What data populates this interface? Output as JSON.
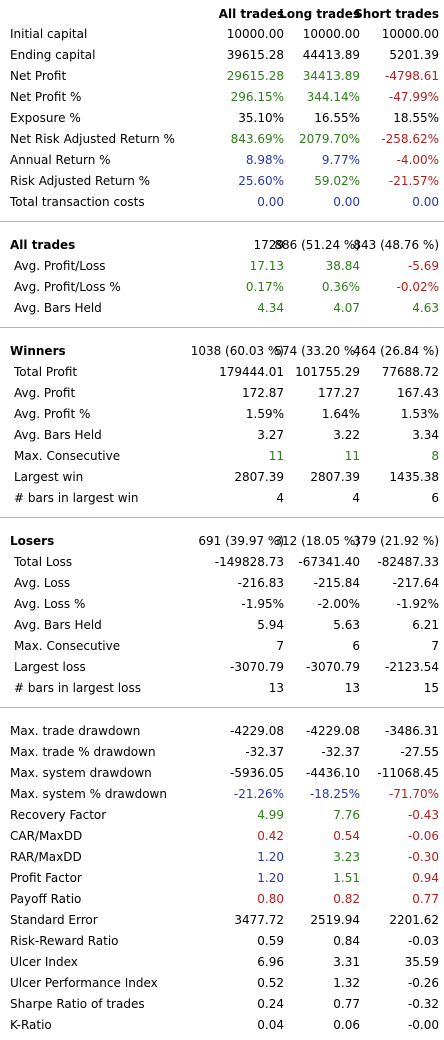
{
  "header": {
    "col_all": "All trades",
    "col_long": "Long trades",
    "col_short": "Short trades"
  },
  "sections": [
    {
      "id": "summary",
      "rows": [
        {
          "label": "Initial capital",
          "all": "10000.00",
          "long": "10000.00",
          "short": "10000.00"
        },
        {
          "label": "Ending capital",
          "all": "39615.28",
          "long": "44413.89",
          "short": "5201.39"
        },
        {
          "label": "Net Profit",
          "all": "29615.28",
          "long": "34413.89",
          "short": "-4798.61"
        },
        {
          "label": "Net Profit %",
          "all": "296.15%",
          "long": "344.14%",
          "short": "-47.99%"
        },
        {
          "label": "Exposure %",
          "all": "35.10%",
          "long": "16.55%",
          "short": "18.55%"
        },
        {
          "label": "Net Risk Adjusted Return %",
          "all": "843.69%",
          "long": "2079.70%",
          "short": "-258.62%"
        },
        {
          "label": "Annual Return %",
          "all": "8.98%",
          "long": "9.77%",
          "short": "-4.00%"
        },
        {
          "label": "Risk Adjusted Return %",
          "all": "25.60%",
          "long": "59.02%",
          "short": "-21.57%"
        },
        {
          "label": "Total transaction costs",
          "all": "0.00",
          "long": "0.00",
          "short": "0.00"
        }
      ]
    },
    {
      "id": "all-trades",
      "title": {
        "label": "All trades",
        "all": "1729",
        "long": "886 (51.24 %)",
        "short": "843 (48.76 %)"
      },
      "rows": [
        {
          "label": "Avg. Profit/Loss",
          "all": "17.13",
          "long": "38.84",
          "short": "-5.69"
        },
        {
          "label": "Avg. Profit/Loss %",
          "all": "0.17%",
          "long": "0.36%",
          "short": "-0.02%"
        },
        {
          "label": "Avg. Bars Held",
          "all": "4.34",
          "long": "4.07",
          "short": "4.63"
        }
      ]
    },
    {
      "id": "winners",
      "title": {
        "label": "Winners",
        "all": "1038 (60.03 %)",
        "long": "574 (33.20 %)",
        "short": "464 (26.84 %)"
      },
      "rows": [
        {
          "label": "Total Profit",
          "all": "179444.01",
          "long": "101755.29",
          "short": "77688.72"
        },
        {
          "label": "Avg. Profit",
          "all": "172.87",
          "long": "177.27",
          "short": "167.43"
        },
        {
          "label": "Avg. Profit %",
          "all": "1.59%",
          "long": "1.64%",
          "short": "1.53%"
        },
        {
          "label": "Avg. Bars Held",
          "all": "3.27",
          "long": "3.22",
          "short": "3.34"
        },
        {
          "label": "Max. Consecutive",
          "all": "11",
          "long": "11",
          "short": "8"
        },
        {
          "label": "Largest win",
          "all": "2807.39",
          "long": "2807.39",
          "short": "1435.38"
        },
        {
          "label": "# bars in largest win",
          "all": "4",
          "long": "4",
          "short": "6"
        }
      ]
    },
    {
      "id": "losers",
      "title": {
        "label": "Losers",
        "all": "691 (39.97 %)",
        "long": "312 (18.05 %)",
        "short": "379 (21.92 %)"
      },
      "rows": [
        {
          "label": "Total Loss",
          "all": "-149828.73",
          "long": "-67341.40",
          "short": "-82487.33"
        },
        {
          "label": "Avg. Loss",
          "all": "-216.83",
          "long": "-215.84",
          "short": "-217.64"
        },
        {
          "label": "Avg. Loss %",
          "all": "-1.95%",
          "long": "-2.00%",
          "short": "-1.92%"
        },
        {
          "label": "Avg. Bars Held",
          "all": "5.94",
          "long": "5.63",
          "short": "6.21"
        },
        {
          "label": "Max. Consecutive",
          "all": "7",
          "long": "6",
          "short": "7"
        },
        {
          "label": "Largest loss",
          "all": "-3070.79",
          "long": "-3070.79",
          "short": "-2123.54"
        },
        {
          "label": "# bars in largest loss",
          "all": "13",
          "long": "13",
          "short": "15"
        }
      ]
    },
    {
      "id": "stats",
      "rows": [
        {
          "label": "Max. trade drawdown",
          "all": "-4229.08",
          "long": "-4229.08",
          "short": "-3486.31"
        },
        {
          "label": "Max. trade % drawdown",
          "all": "-32.37",
          "long": "-32.37",
          "short": "-27.55"
        },
        {
          "label": "Max. system drawdown",
          "all": "-5936.05",
          "long": "-4436.10",
          "short": "-11068.45"
        },
        {
          "label": "Max. system % drawdown",
          "all": "-21.26%",
          "long": "-18.25%",
          "short": "-71.70%"
        },
        {
          "label": "Recovery Factor",
          "all": "4.99",
          "long": "7.76",
          "short": "-0.43"
        },
        {
          "label": "CAR/MaxDD",
          "all": "0.42",
          "long": "0.54",
          "short": "-0.06"
        },
        {
          "label": "RAR/MaxDD",
          "all": "1.20",
          "long": "3.23",
          "short": "-0.30"
        },
        {
          "label": "Profit Factor",
          "all": "1.20",
          "long": "1.51",
          "short": "0.94"
        },
        {
          "label": "Payoff Ratio",
          "all": "0.80",
          "long": "0.82",
          "short": "0.77"
        },
        {
          "label": "Standard Error",
          "all": "3477.72",
          "long": "2519.94",
          "short": "2201.62"
        },
        {
          "label": "Risk-Reward Ratio",
          "all": "0.59",
          "long": "0.84",
          "short": "-0.03"
        },
        {
          "label": "Ulcer Index",
          "all": "6.96",
          "long": "3.31",
          "short": "35.59"
        },
        {
          "label": "Ulcer Performance Index",
          "all": "0.52",
          "long": "1.32",
          "short": "-0.26"
        },
        {
          "label": "Sharpe Ratio of trades",
          "all": "0.24",
          "long": "0.77",
          "short": "-0.32"
        },
        {
          "label": "K-Ratio",
          "all": "0.04",
          "long": "0.06",
          "short": "-0.00"
        }
      ]
    }
  ],
  "colors": {
    "positive": "#2e7d1b",
    "negative": "#b21f1f",
    "ratio": "#2a37a8"
  }
}
